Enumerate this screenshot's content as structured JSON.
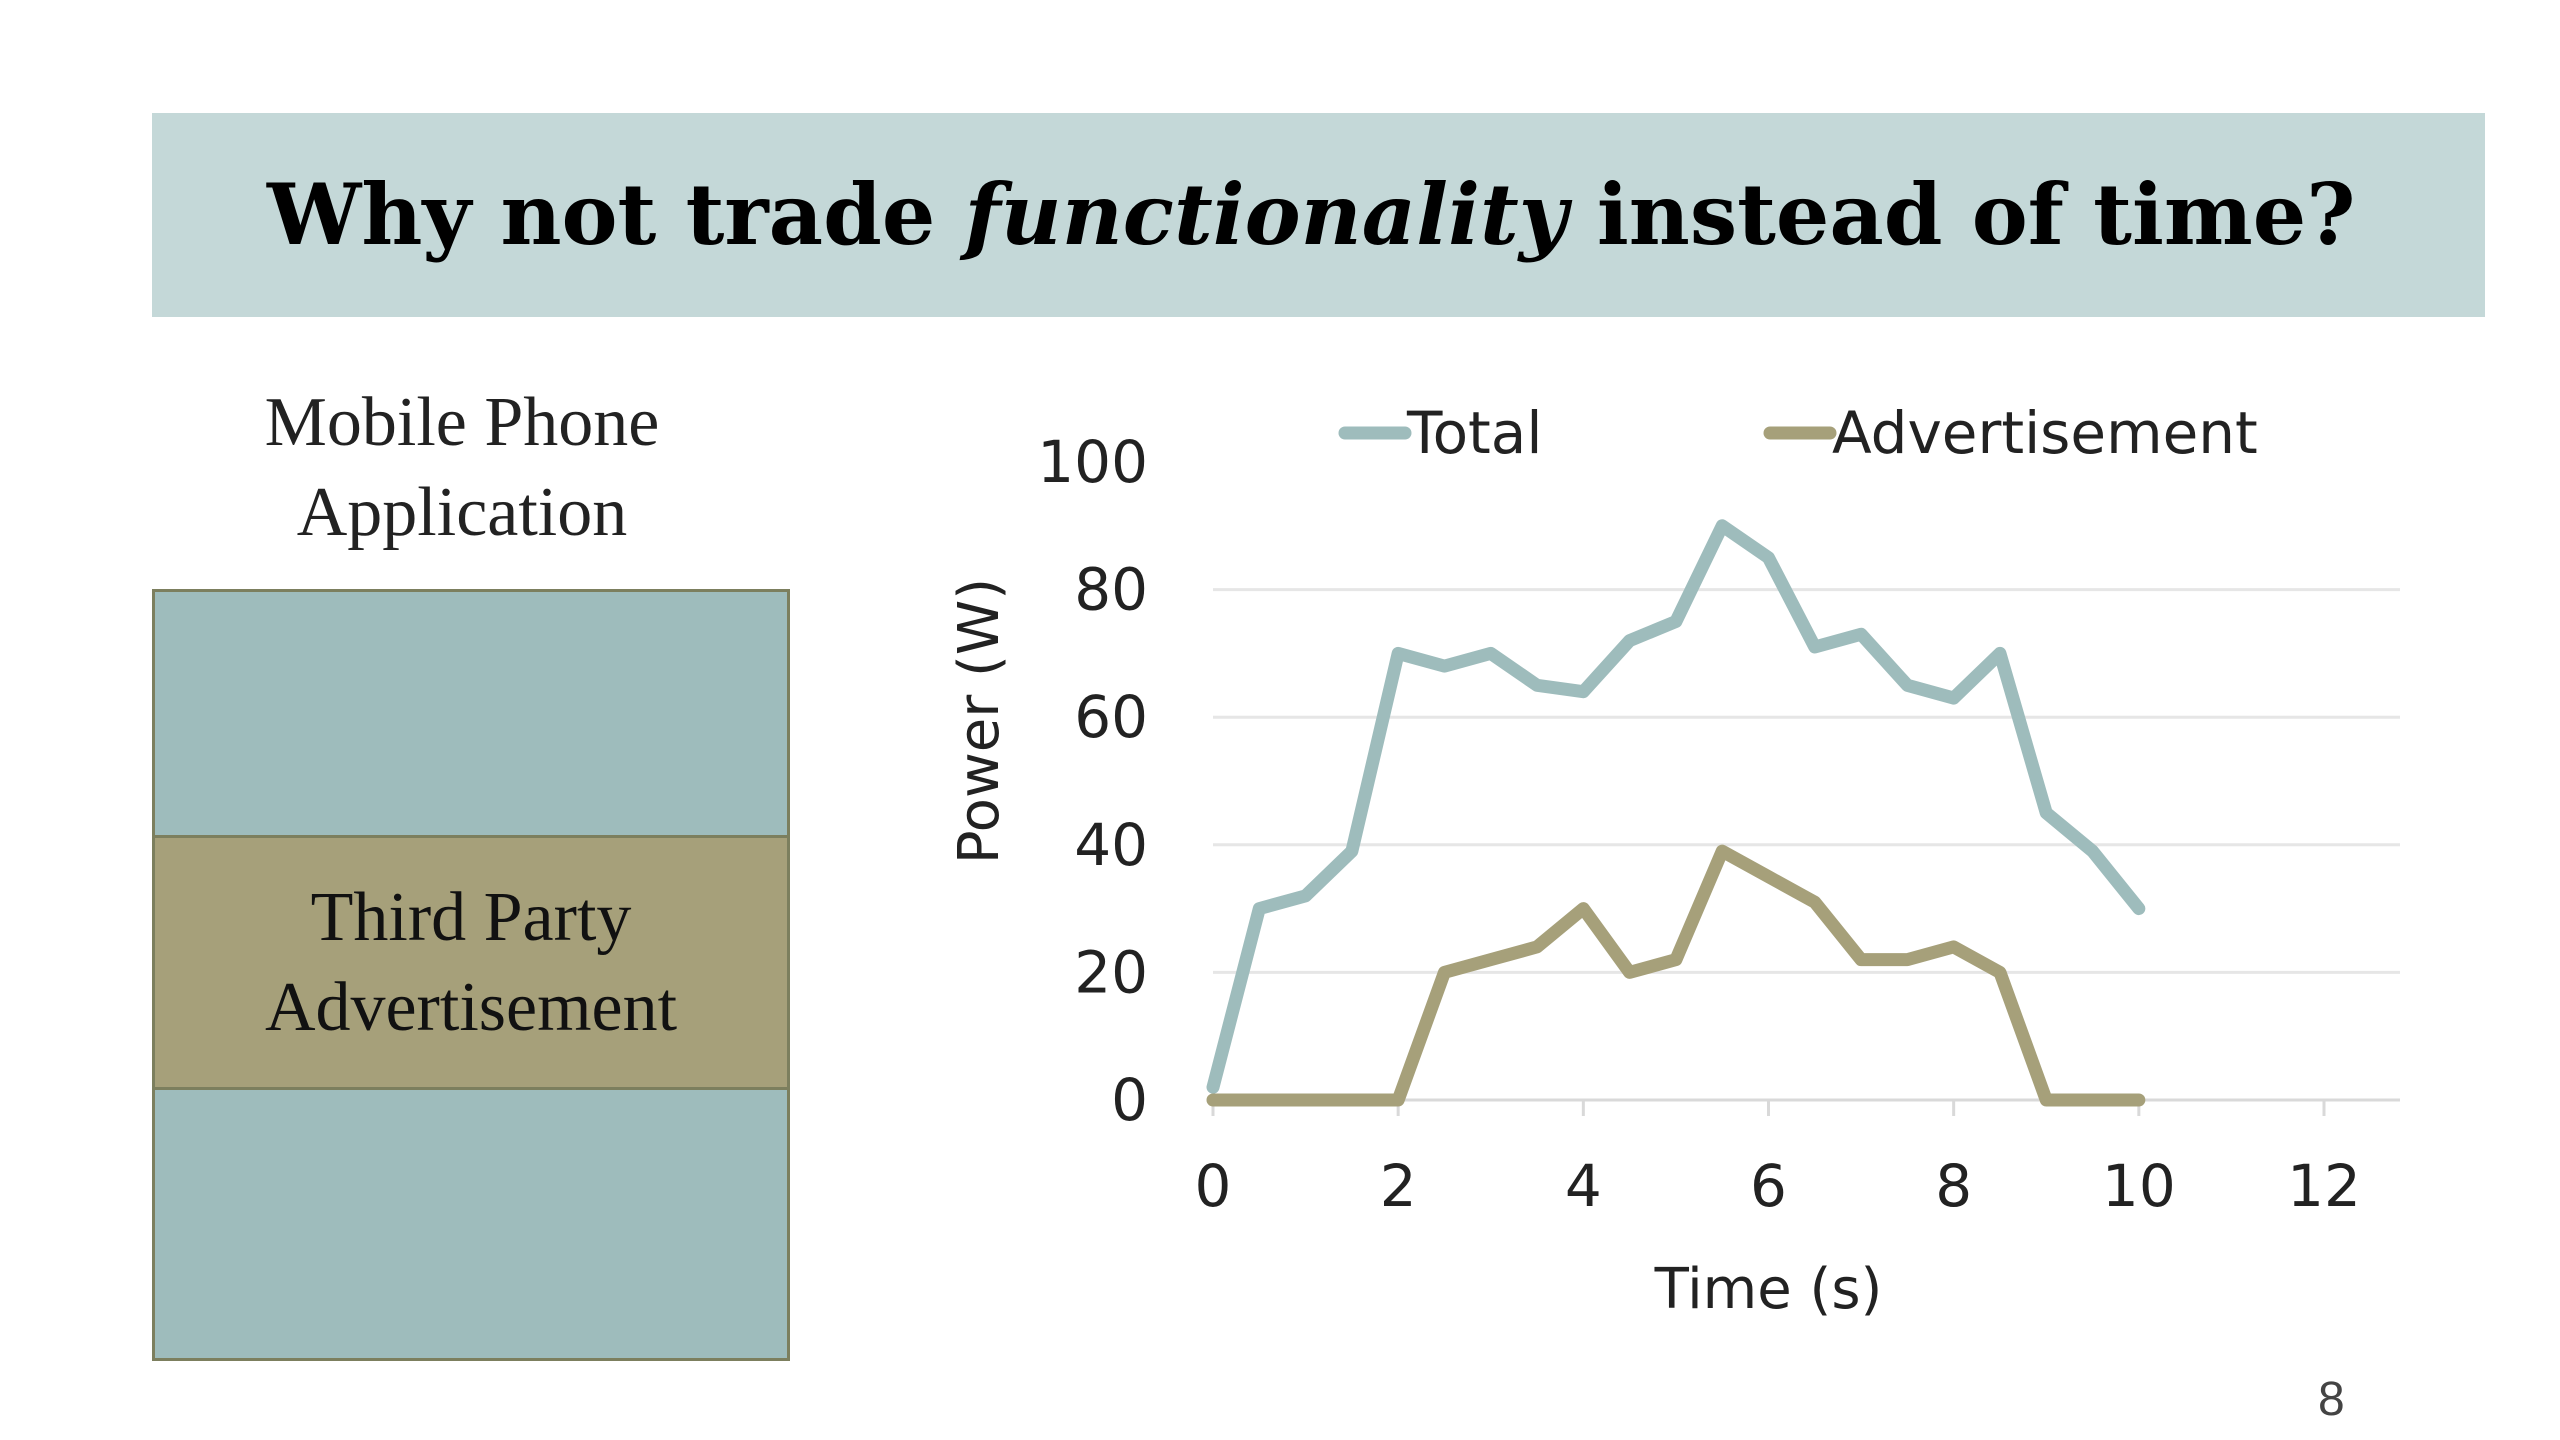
{
  "slide": {
    "title_part1": "Why not trade ",
    "title_emph": "functionality",
    "title_part2": " instead of time?",
    "app_caption_line1": "Mobile Phone",
    "app_caption_line2": "Application",
    "ad_line1": "Third Party",
    "ad_line2": "Advertisement",
    "page_number": "8"
  },
  "colors": {
    "title_bg": "#c4d8d8",
    "app_box": "#9ebcbc",
    "ad_box": "#a6a07a",
    "total_line": "#9ebcbc",
    "ad_line": "#a6a07a"
  },
  "chart_data": {
    "type": "line",
    "xlabel": "Time (s)",
    "ylabel": "Power (W)",
    "xlim": [
      0,
      12
    ],
    "ylim": [
      0,
      100
    ],
    "xticks": [
      0,
      2,
      4,
      6,
      8,
      10,
      12
    ],
    "yticks": [
      0,
      20,
      40,
      60,
      80,
      100
    ],
    "grid": "horizontal",
    "legend": "top",
    "series": [
      {
        "name": "Total",
        "color": "#9ebcbc",
        "x": [
          0,
          0.5,
          1,
          1.5,
          2,
          2.5,
          3,
          3.5,
          4,
          4.5,
          5,
          5.5,
          6,
          6.5,
          7,
          7.5,
          8,
          8.5,
          9,
          9.5,
          10
        ],
        "y": [
          2,
          30,
          32,
          39,
          70,
          68,
          70,
          65,
          64,
          72,
          75,
          90,
          85,
          71,
          73,
          65,
          63,
          70,
          45,
          39,
          30
        ]
      },
      {
        "name": "Advertisement",
        "color": "#a6a07a",
        "x": [
          0,
          0.5,
          1,
          1.5,
          2,
          2.5,
          3,
          3.5,
          4,
          4.5,
          5,
          5.5,
          6,
          6.5,
          7,
          7.5,
          8,
          8.5,
          9,
          9.5,
          10
        ],
        "y": [
          0,
          0,
          0,
          0,
          0,
          20,
          22,
          24,
          30,
          20,
          22,
          39,
          35,
          31,
          22,
          22,
          24,
          20,
          0,
          0,
          0
        ]
      }
    ]
  }
}
